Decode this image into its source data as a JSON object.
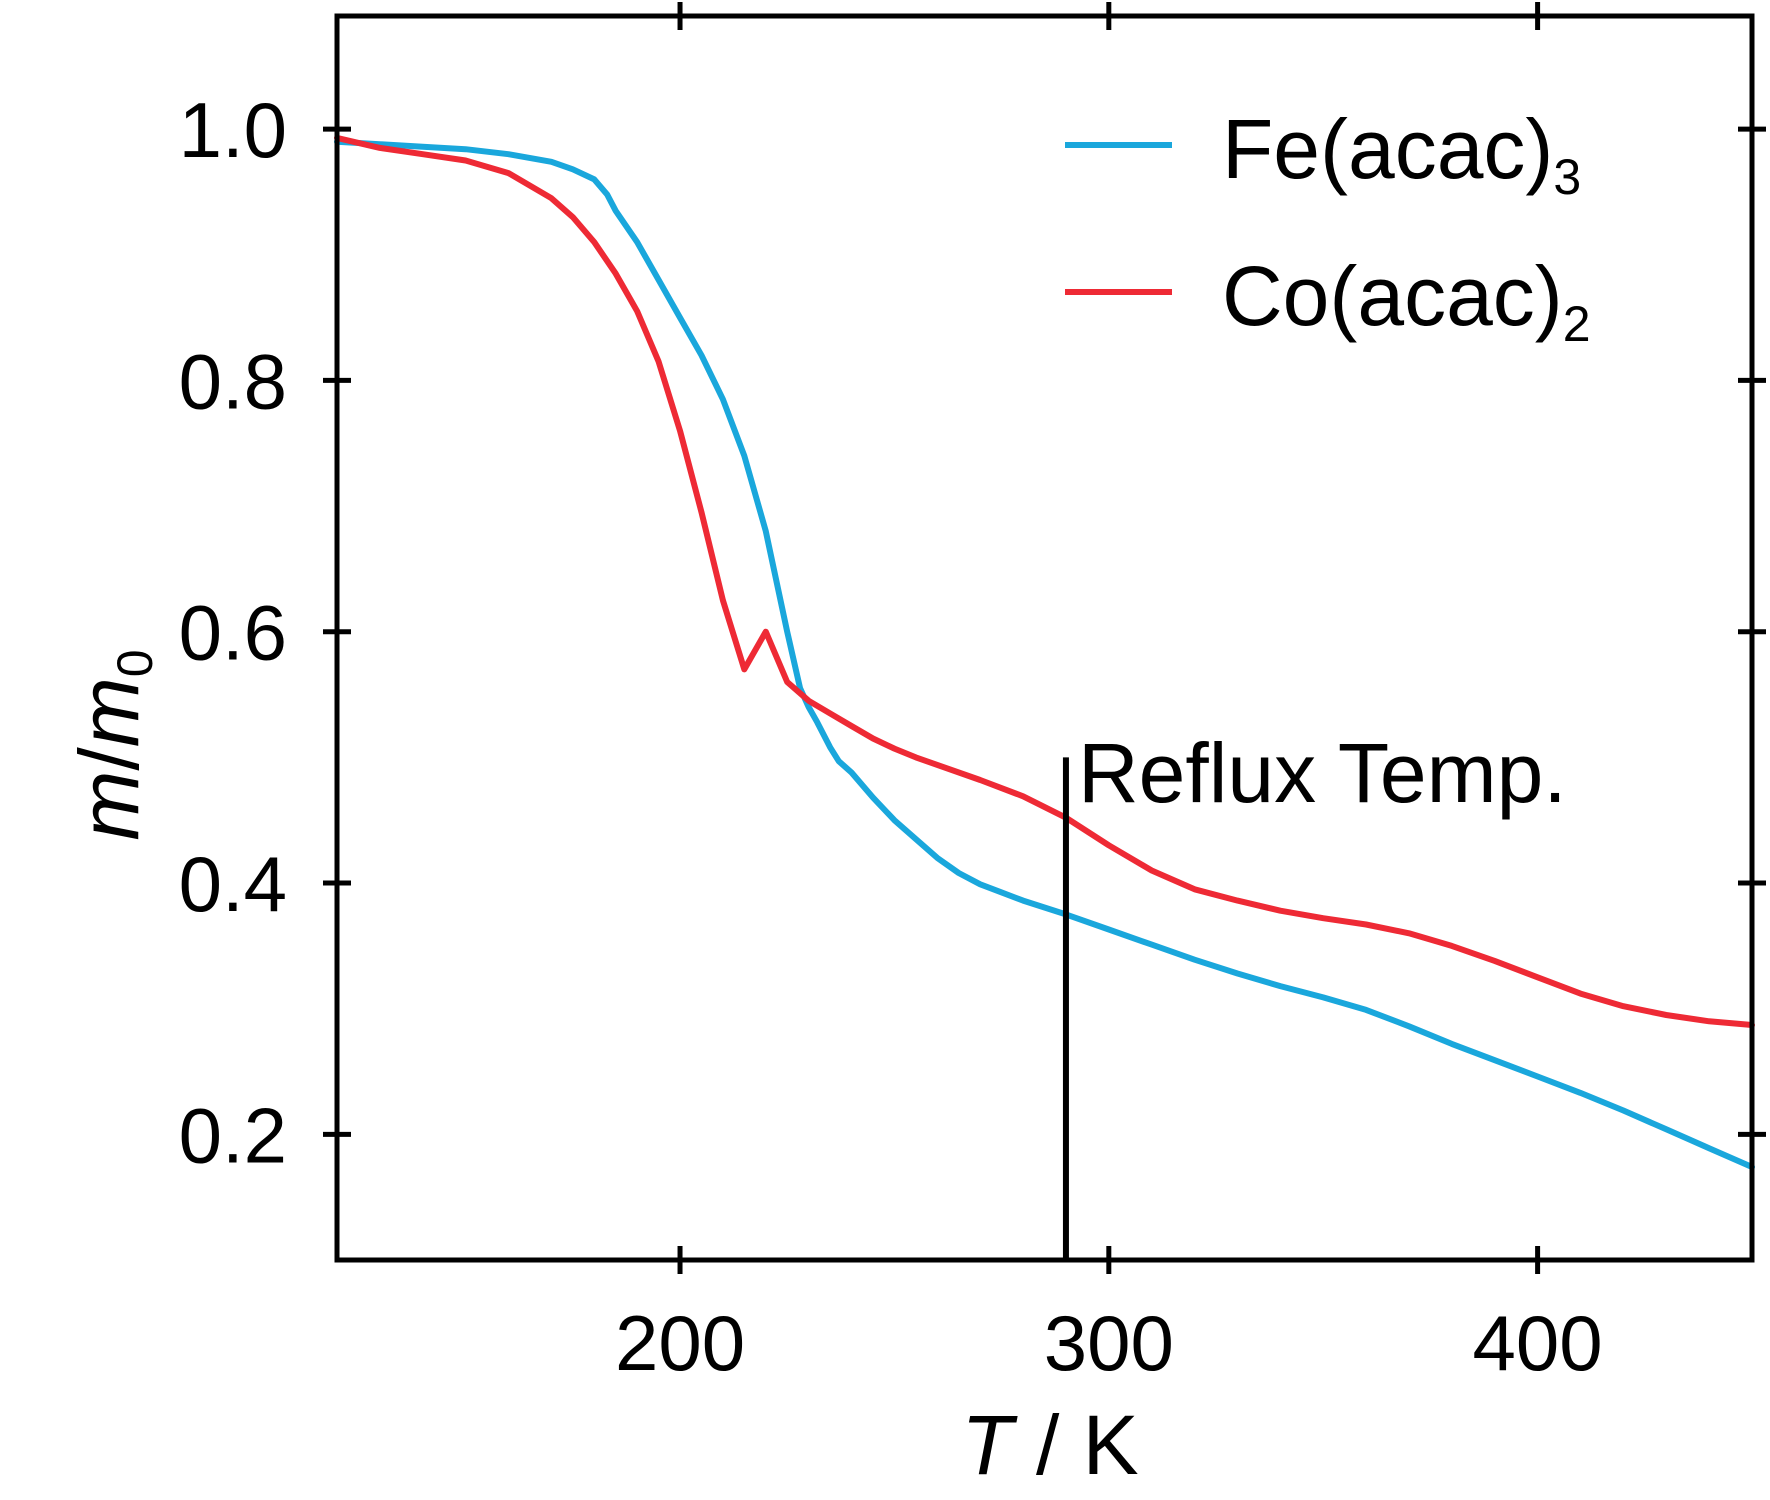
{
  "chart_data": {
    "type": "line",
    "xlabel": {
      "symbol": "T",
      "unit": "K"
    },
    "ylabel": {
      "symbol": "m",
      "ref": "m",
      "ref_sub": "0"
    },
    "xlim": [
      120,
      450
    ],
    "ylim": [
      0.1,
      1.09
    ],
    "xticks": [
      200,
      300,
      400
    ],
    "yticks": [
      0.2,
      0.4,
      0.6,
      0.8,
      1.0
    ],
    "xtick_labels": [
      "200",
      "300",
      "400"
    ],
    "ytick_labels": [
      "0.2",
      "0.4",
      "0.6",
      "0.8",
      "1.0"
    ],
    "grid": false,
    "legend_position": "top-right",
    "series": [
      {
        "name": "Fe(acac)3",
        "name_main": "Fe(acac)",
        "name_sub": "3",
        "color": "#1aa7dc",
        "x": [
          120,
          130,
          140,
          150,
          160,
          170,
          175,
          180,
          183,
          185,
          190,
          195,
          200,
          205,
          210,
          215,
          220,
          225,
          228,
          230,
          232,
          235,
          237,
          240,
          245,
          250,
          255,
          260,
          265,
          270,
          280,
          290,
          300,
          310,
          320,
          330,
          340,
          350,
          360,
          370,
          380,
          390,
          400,
          410,
          420,
          430,
          440,
          450
        ],
        "y": [
          0.99,
          0.988,
          0.986,
          0.984,
          0.98,
          0.974,
          0.968,
          0.96,
          0.948,
          0.935,
          0.91,
          0.88,
          0.85,
          0.82,
          0.785,
          0.74,
          0.68,
          0.6,
          0.555,
          0.54,
          0.528,
          0.508,
          0.497,
          0.488,
          0.468,
          0.45,
          0.435,
          0.42,
          0.408,
          0.399,
          0.386,
          0.375,
          0.363,
          0.351,
          0.339,
          0.328,
          0.318,
          0.309,
          0.299,
          0.286,
          0.272,
          0.259,
          0.246,
          0.233,
          0.219,
          0.204,
          0.189,
          0.174
        ]
      },
      {
        "name": "Co(acac)2",
        "name_main": "Co(acac)",
        "name_sub": "2",
        "color": "#ee2a35",
        "x": [
          120,
          130,
          140,
          150,
          160,
          170,
          175,
          180,
          185,
          190,
          195,
          200,
          205,
          210,
          215,
          220,
          225,
          230,
          235,
          240,
          245,
          250,
          255,
          260,
          270,
          280,
          290,
          300,
          310,
          320,
          330,
          340,
          350,
          360,
          370,
          380,
          390,
          400,
          410,
          420,
          430,
          440,
          450
        ],
        "y": [
          0.993,
          0.985,
          0.98,
          0.975,
          0.965,
          0.945,
          0.93,
          0.91,
          0.885,
          0.855,
          0.815,
          0.76,
          0.695,
          0.625,
          0.57,
          0.6,
          0.56,
          0.545,
          0.535,
          0.525,
          0.515,
          0.507,
          0.5,
          0.494,
          0.482,
          0.469,
          0.452,
          0.43,
          0.41,
          0.395,
          0.386,
          0.378,
          0.372,
          0.367,
          0.36,
          0.35,
          0.338,
          0.325,
          0.312,
          0.302,
          0.295,
          0.29,
          0.287
        ]
      }
    ],
    "annotations": [
      {
        "text": "Reflux Temp.",
        "x": 290,
        "y_from": 0.1,
        "y_to": 0.5
      }
    ]
  }
}
